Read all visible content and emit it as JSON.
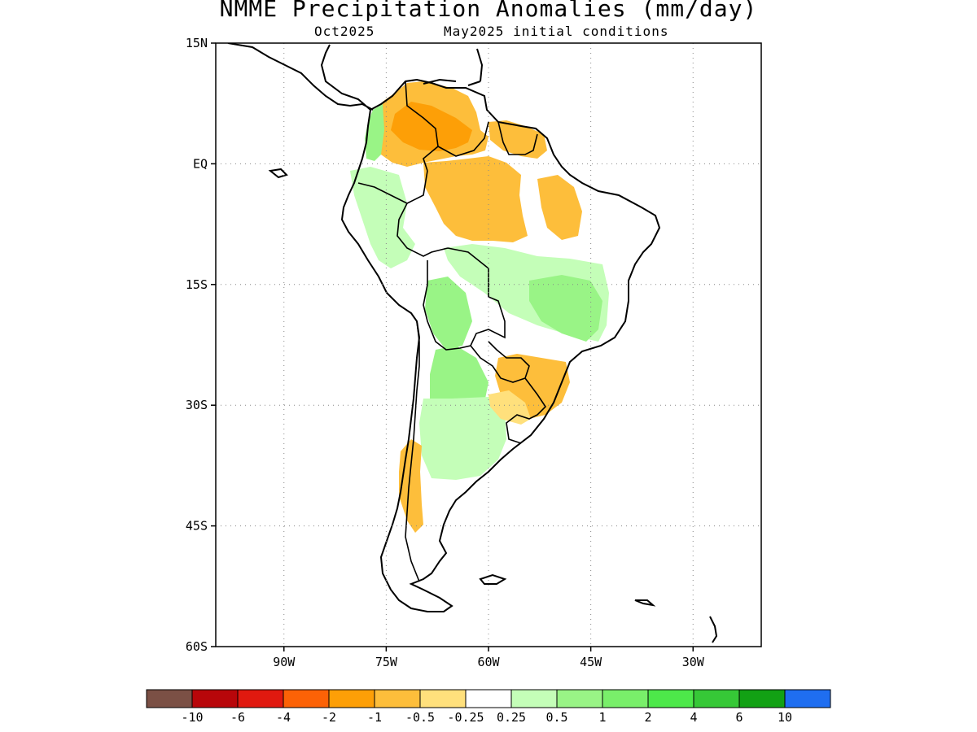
{
  "title": "NMME Precipitation Anomalies (mm/day)",
  "subtitle_left": "Oct2025",
  "subtitle_right": "May2025 initial conditions",
  "map": {
    "region": "South America",
    "lat_range": [
      -60,
      15
    ],
    "lon_range": [
      -100,
      -20
    ],
    "lat_ticks": [
      {
        "value": 15,
        "label": "15N"
      },
      {
        "value": 0,
        "label": "EQ"
      },
      {
        "value": -15,
        "label": "15S"
      },
      {
        "value": -30,
        "label": "30S"
      },
      {
        "value": -45,
        "label": "45S"
      },
      {
        "value": -60,
        "label": "60S"
      }
    ],
    "lon_ticks": [
      {
        "value": -90,
        "label": "90W"
      },
      {
        "value": -75,
        "label": "75W"
      },
      {
        "value": -60,
        "label": "60W"
      },
      {
        "value": -45,
        "label": "45W"
      },
      {
        "value": -30,
        "label": "30W"
      }
    ],
    "gridlines": "dotted"
  },
  "colorbar": {
    "colors": [
      "#7b5045",
      "#b8060a",
      "#e0190f",
      "#fc6206",
      "#fd9f07",
      "#fdbe3b",
      "#ffe07c",
      "#ffffff",
      "#c4feb8",
      "#99f486",
      "#79ef6a",
      "#4de84a",
      "#36c837",
      "#12a114",
      "#1f6ef0"
    ],
    "labels": [
      "-10",
      "-6",
      "-4",
      "-2",
      "-1",
      "-0.5",
      "-0.25",
      "0.25",
      "0.5",
      "1",
      "2",
      "4",
      "6",
      "10"
    ]
  },
  "anomaly_regions": [
    {
      "name": "Venezuela/Colombia dry",
      "fill": "#fdbe3b",
      "value": -1
    },
    {
      "name": "Amazon dry",
      "fill": "#fdbe3b",
      "value": -1
    },
    {
      "name": "Amazon core dry",
      "fill": "#fd9f07",
      "value": -2
    },
    {
      "name": "Guianas dry",
      "fill": "#fdbe3b",
      "value": -1
    },
    {
      "name": "NE Brazil dry",
      "fill": "#fdbe3b",
      "value": -1
    },
    {
      "name": "Pacific Colombia wet",
      "fill": "#99f486",
      "value": 1
    },
    {
      "name": "Ecuador/Peru wet",
      "fill": "#c4feb8",
      "value": 0.5
    },
    {
      "name": "Central Brazil wet",
      "fill": "#c4feb8",
      "value": 0.5
    },
    {
      "name": "Goias/Minas wet",
      "fill": "#99f486",
      "value": 1
    },
    {
      "name": "Bolivia wet",
      "fill": "#99f486",
      "value": 1
    },
    {
      "name": "Paraguay/N Argentina wet",
      "fill": "#99f486",
      "value": 1
    },
    {
      "name": "Central Argentina wet",
      "fill": "#c4feb8",
      "value": 0.5
    },
    {
      "name": "S Brazil dry",
      "fill": "#fdbe3b",
      "value": -1
    },
    {
      "name": "Uruguay dry",
      "fill": "#ffe07c",
      "value": -0.5
    },
    {
      "name": "S Chile dry",
      "fill": "#fdbe3b",
      "value": -1
    }
  ]
}
